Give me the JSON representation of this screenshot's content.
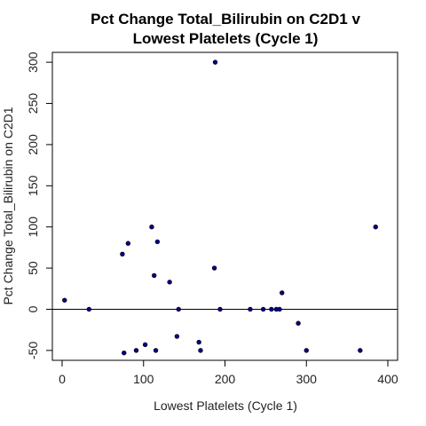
{
  "chart_data": {
    "type": "scatter",
    "title_lines": [
      "Pct Change Total_Bilirubin on C2D1 v",
      "Lowest Platelets (Cycle 1)"
    ],
    "xlabel": "Lowest Platelets (Cycle 1)",
    "ylabel": "Pct Change Total_Bilirubin on C2D1",
    "xlim": [
      -12,
      412
    ],
    "ylim": [
      -62,
      312
    ],
    "xticks": [
      0,
      100,
      200,
      300,
      400
    ],
    "yticks": [
      -50,
      0,
      50,
      100,
      150,
      200,
      250,
      300
    ],
    "reference_line_y": 0,
    "grid": false,
    "point_color": "#00008B",
    "points": [
      {
        "x": 3,
        "y": 11
      },
      {
        "x": 33,
        "y": 0
      },
      {
        "x": 74,
        "y": 67
      },
      {
        "x": 76,
        "y": -53
      },
      {
        "x": 81,
        "y": 80
      },
      {
        "x": 91,
        "y": -50
      },
      {
        "x": 102,
        "y": -43
      },
      {
        "x": 110,
        "y": 100
      },
      {
        "x": 113,
        "y": 41
      },
      {
        "x": 115,
        "y": -50
      },
      {
        "x": 117,
        "y": 82
      },
      {
        "x": 132,
        "y": 33
      },
      {
        "x": 141,
        "y": -33
      },
      {
        "x": 143,
        "y": 0
      },
      {
        "x": 168,
        "y": -40
      },
      {
        "x": 170,
        "y": -50
      },
      {
        "x": 187,
        "y": 50
      },
      {
        "x": 188,
        "y": 300
      },
      {
        "x": 194,
        "y": 0
      },
      {
        "x": 231,
        "y": 0
      },
      {
        "x": 247,
        "y": 0
      },
      {
        "x": 257,
        "y": 0
      },
      {
        "x": 263,
        "y": 0
      },
      {
        "x": 267,
        "y": 0
      },
      {
        "x": 270,
        "y": 20
      },
      {
        "x": 290,
        "y": -17
      },
      {
        "x": 300,
        "y": -50
      },
      {
        "x": 366,
        "y": -50
      },
      {
        "x": 385,
        "y": 100
      }
    ]
  }
}
